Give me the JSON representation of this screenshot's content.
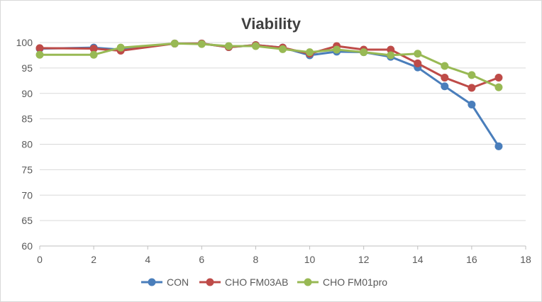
{
  "chart_data": {
    "type": "line",
    "title": "Viability",
    "xlabel": "",
    "ylabel": "",
    "xlim": [
      0,
      18
    ],
    "ylim": [
      60,
      100
    ],
    "xticks": [
      0,
      2,
      4,
      6,
      8,
      10,
      12,
      14,
      16,
      18
    ],
    "yticks": [
      60,
      65,
      70,
      75,
      80,
      85,
      90,
      95,
      100
    ],
    "grid": "horizontal",
    "legend_position": "bottom",
    "series": [
      {
        "name": "CON",
        "color": "#4a7ebb",
        "x": [
          0,
          2,
          3,
          5,
          6,
          7,
          8,
          9,
          10,
          11,
          12,
          13,
          14,
          15,
          16,
          17
        ],
        "y": [
          98.8,
          99.0,
          98.6,
          99.8,
          99.8,
          99.1,
          99.5,
          99.0,
          97.5,
          98.2,
          98.1,
          97.2,
          95.1,
          91.4,
          87.8,
          79.6
        ]
      },
      {
        "name": "CHO FM03AB",
        "color": "#be4b48",
        "x": [
          0,
          2,
          3,
          5,
          6,
          7,
          8,
          9,
          10,
          11,
          12,
          13,
          14,
          15,
          16,
          17
        ],
        "y": [
          98.9,
          98.8,
          98.4,
          99.8,
          99.8,
          99.1,
          99.5,
          99.0,
          97.8,
          99.3,
          98.6,
          98.6,
          95.9,
          93.1,
          91.1,
          93.1
        ]
      },
      {
        "name": "CHO FM01pro",
        "color": "#98b954",
        "x": [
          0,
          2,
          3,
          5,
          6,
          7,
          8,
          9,
          10,
          11,
          12,
          13,
          14,
          15,
          16,
          17
        ],
        "y": [
          97.6,
          97.6,
          99.0,
          99.8,
          99.7,
          99.3,
          99.3,
          98.7,
          98.1,
          98.6,
          98.1,
          97.5,
          97.8,
          95.4,
          93.6,
          91.2
        ]
      }
    ]
  }
}
